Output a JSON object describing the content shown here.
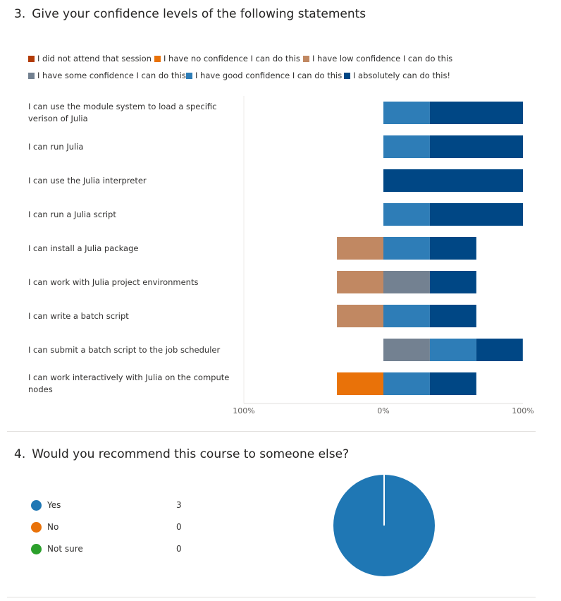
{
  "q3": {
    "number": "3.",
    "title": "Give your confidence levels of the following statements"
  },
  "q4": {
    "number": "4.",
    "title": "Would you recommend this course to someone else?"
  },
  "chart_data": [
    {
      "type": "bar",
      "orientation": "horizontal-stacked-diverging",
      "legend_position": "top",
      "categories": [
        "I can use the module system to load a specific verison of Julia",
        "I can run Julia",
        "I can use the Julia interpreter",
        "I can run a Julia script",
        "I can install a Julia package",
        "I can work with Julia project environments",
        "I can write a batch script",
        "I can submit a batch script to the job scheduler",
        "I can work interactively with Julia on the compute nodes"
      ],
      "series": [
        {
          "name": "I did not attend that session",
          "color": "#b23b07",
          "values": [
            0,
            0,
            0,
            0,
            0,
            0,
            0,
            0,
            0
          ]
        },
        {
          "name": "I have no confidence I can do this",
          "color": "#e97209",
          "values": [
            0,
            0,
            0,
            0,
            0,
            0,
            0,
            0,
            33.3
          ]
        },
        {
          "name": "I have low confidence I can do this",
          "color": "#c18862",
          "values": [
            0,
            0,
            0,
            0,
            33.3,
            33.3,
            33.3,
            0,
            0
          ]
        },
        {
          "name": "I have some confidence I can do this",
          "color": "#738191",
          "values": [
            0,
            0,
            0,
            0,
            0,
            33.3,
            0,
            33.3,
            0
          ]
        },
        {
          "name": "I have good confidence I can do this",
          "color": "#2e7db7",
          "values": [
            33.3,
            33.3,
            0,
            33.3,
            33.3,
            0,
            33.3,
            33.3,
            33.3
          ]
        },
        {
          "name": "I absolutely can do this!",
          "color": "#004785",
          "values": [
            66.7,
            66.7,
            100,
            66.7,
            33.3,
            33.3,
            33.3,
            33.3,
            33.3
          ]
        }
      ],
      "negative_series": [
        "I did not attend that session",
        "I have no confidence I can do this",
        "I have low confidence I can do this"
      ],
      "xlim": [
        -100,
        100
      ],
      "tick_labels": [
        "100%",
        "0%",
        "100%"
      ],
      "grid": false
    },
    {
      "type": "pie",
      "categories": [
        "Yes",
        "No",
        "Not sure"
      ],
      "values": [
        3,
        0,
        0
      ],
      "colors": [
        "#1f77b4",
        "#e97209",
        "#2ca02c"
      ]
    }
  ]
}
